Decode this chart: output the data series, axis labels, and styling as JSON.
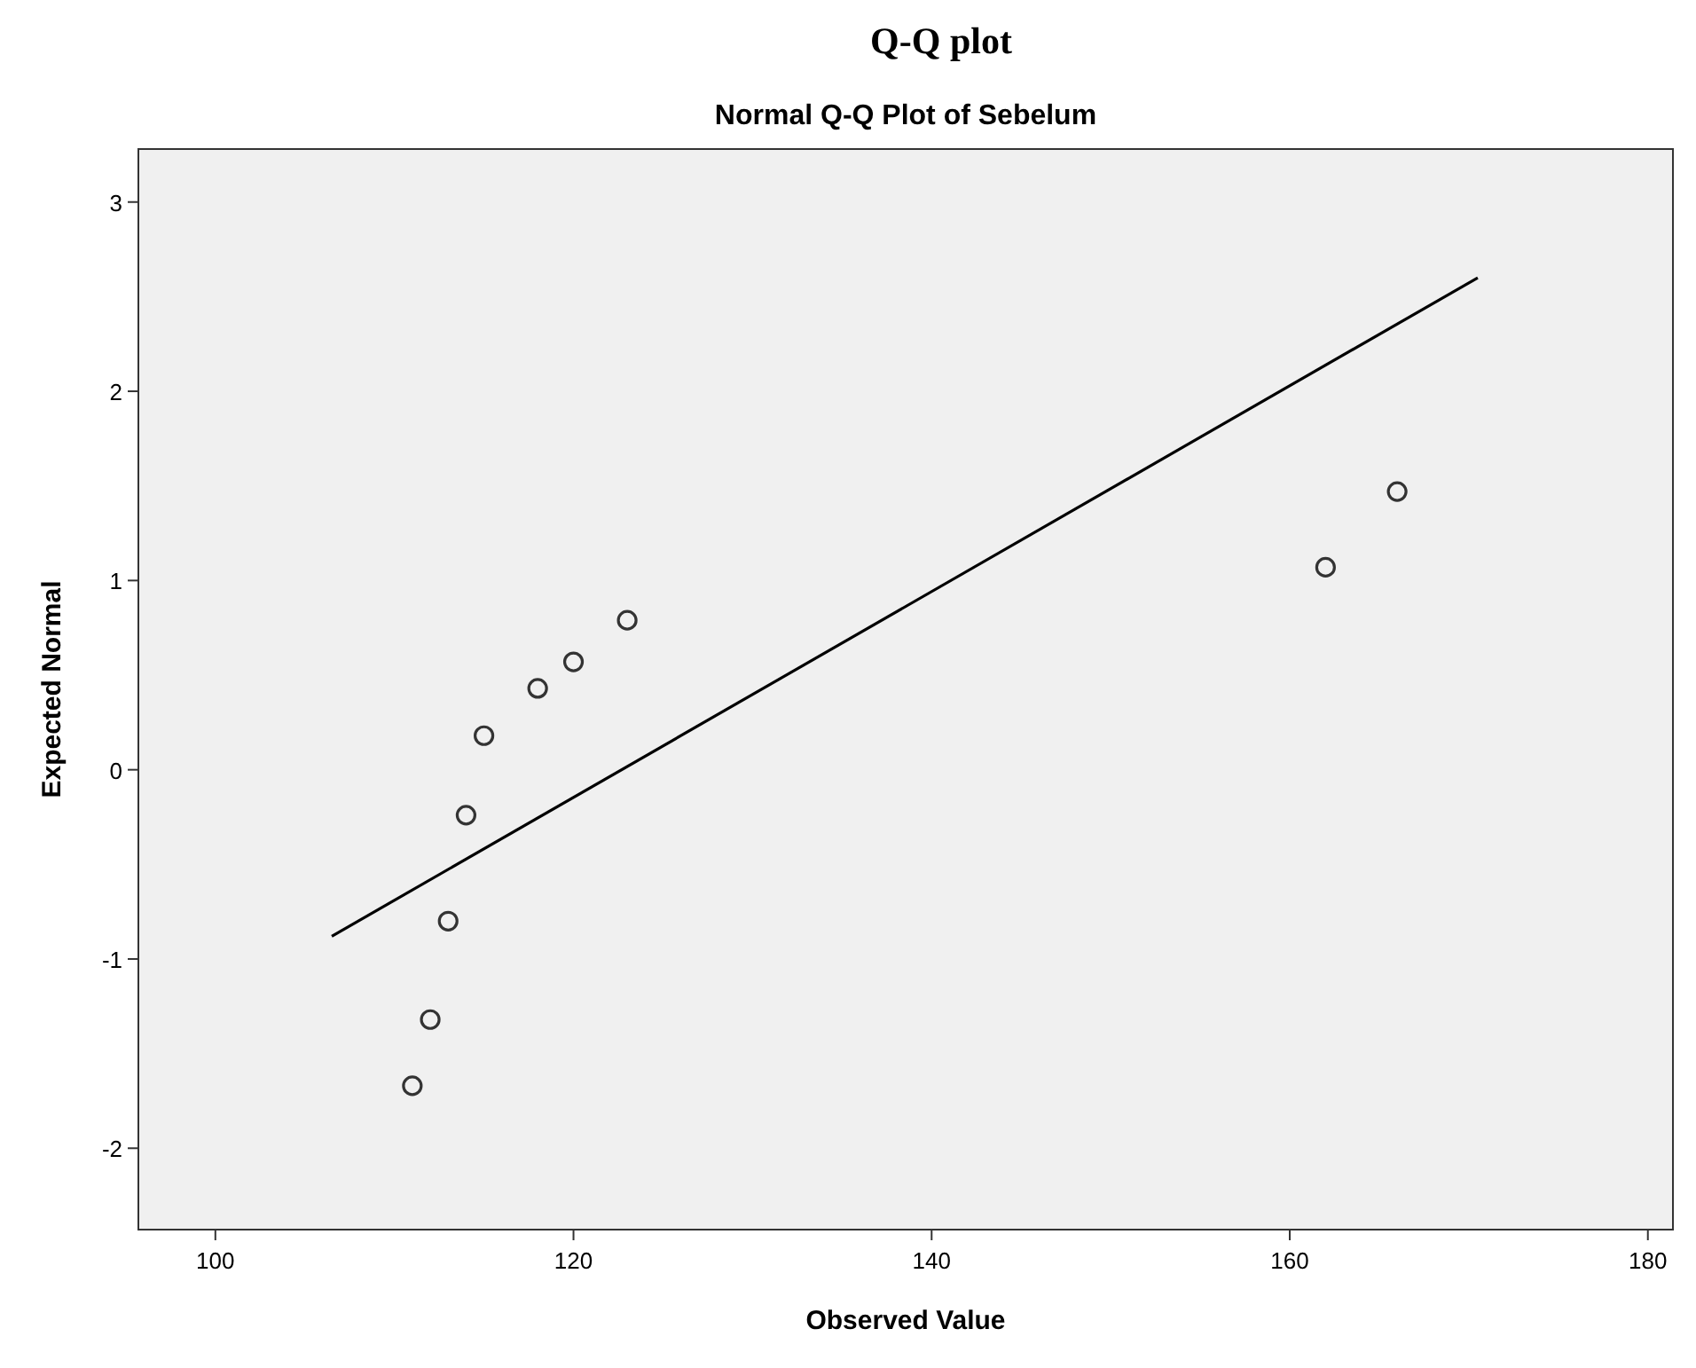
{
  "chart_data": {
    "type": "scatter",
    "title": "Q-Q plot",
    "subtitle": "Normal Q-Q Plot of Sebelum",
    "xlabel": "Observed Value",
    "ylabel": "Expected Normal",
    "xlim": [
      95.7,
      181.4
    ],
    "xticks": [
      100,
      120,
      140,
      160,
      180
    ],
    "ylim": [
      -2.43,
      3.28
    ],
    "yticks": [
      -2,
      -1,
      0,
      1,
      2,
      3
    ],
    "grid": false,
    "series": [
      {
        "color": "#333333",
        "marker": "circle",
        "x": [
          111,
          112,
          113,
          114,
          115,
          118,
          120,
          123,
          162,
          166
        ],
        "values": [
          -1.67,
          -1.32,
          -0.8,
          -0.24,
          0.18,
          0.43,
          0.57,
          0.79,
          1.07,
          1.47
        ]
      },
      {
        "type": "line",
        "color": "#000000",
        "marker": "none",
        "x": [
          106.5,
          170.5
        ],
        "values": [
          -0.88,
          2.6
        ]
      }
    ]
  }
}
